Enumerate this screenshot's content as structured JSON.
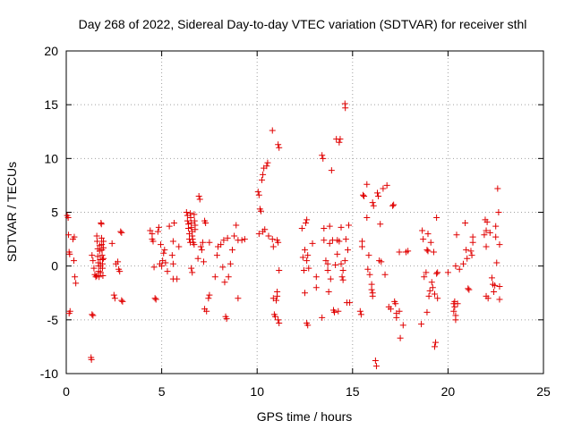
{
  "chart_data": {
    "type": "scatter",
    "title": "Day 268 of 2022, Sidereal Day-to-day VTEC variation (SDTVAR) for receiver sthl",
    "xlabel": "GPS time / hours",
    "ylabel": "SDTVAR / TECUs",
    "xlim": [
      0,
      25
    ],
    "ylim": [
      -10,
      20
    ],
    "xticks": [
      0,
      5,
      10,
      15,
      20,
      25
    ],
    "yticks": [
      -10,
      -5,
      0,
      5,
      10,
      15,
      20
    ],
    "grid": true,
    "marker": "+",
    "color": "#e00000",
    "series": [
      {
        "name": "SDTVAR",
        "points": [
          [
            0.05,
            4.7
          ],
          [
            0.1,
            4.5
          ],
          [
            0.12,
            2.9
          ],
          [
            0.15,
            1.3
          ],
          [
            0.18,
            1.1
          ],
          [
            0.2,
            -4.2
          ],
          [
            0.15,
            -4.4
          ],
          [
            0.35,
            2.5
          ],
          [
            0.4,
            0.5
          ],
          [
            0.42,
            2.7
          ],
          [
            0.45,
            -1.0
          ],
          [
            0.5,
            -1.6
          ],
          [
            1.3,
            -8.5
          ],
          [
            1.32,
            -8.7
          ],
          [
            1.35,
            -4.5
          ],
          [
            1.4,
            -4.6
          ],
          [
            1.35,
            1.0
          ],
          [
            1.4,
            0.5
          ],
          [
            1.45,
            -0.2
          ],
          [
            1.5,
            -0.8
          ],
          [
            1.55,
            -1.0
          ],
          [
            1.6,
            2.8
          ],
          [
            1.62,
            2.3
          ],
          [
            1.65,
            1.6
          ],
          [
            1.65,
            0.9
          ],
          [
            1.68,
            0.3
          ],
          [
            1.7,
            0.0
          ],
          [
            1.7,
            -0.5
          ],
          [
            1.72,
            -1.0
          ],
          [
            1.75,
            1.9
          ],
          [
            1.75,
            1.4
          ],
          [
            1.78,
            0.6
          ],
          [
            1.8,
            0.0
          ],
          [
            1.8,
            -0.6
          ],
          [
            1.82,
            4.0
          ],
          [
            1.84,
            3.9
          ],
          [
            1.85,
            2.6
          ],
          [
            1.86,
            2.0
          ],
          [
            1.87,
            1.5
          ],
          [
            1.88,
            1.0
          ],
          [
            1.9,
            0.6
          ],
          [
            1.9,
            0.2
          ],
          [
            1.9,
            -0.2
          ],
          [
            1.92,
            -0.9
          ],
          [
            1.95,
            2.3
          ],
          [
            1.95,
            1.7
          ],
          [
            1.95,
            0.7
          ],
          [
            1.6,
            -0.9
          ],
          [
            2.4,
            2.1
          ],
          [
            2.5,
            -2.7
          ],
          [
            2.55,
            -3.0
          ],
          [
            2.6,
            0.2
          ],
          [
            2.7,
            0.4
          ],
          [
            2.75,
            -0.3
          ],
          [
            2.8,
            -0.5
          ],
          [
            2.85,
            3.2
          ],
          [
            2.9,
            3.1
          ],
          [
            2.9,
            -3.2
          ],
          [
            2.95,
            -3.3
          ],
          [
            4.4,
            3.3
          ],
          [
            4.5,
            3.0
          ],
          [
            4.5,
            2.5
          ],
          [
            4.55,
            2.3
          ],
          [
            4.6,
            -0.1
          ],
          [
            4.65,
            -3.0
          ],
          [
            4.7,
            -3.1
          ],
          [
            4.8,
            3.2
          ],
          [
            4.85,
            3.6
          ],
          [
            4.9,
            0.2
          ],
          [
            4.95,
            2.0
          ],
          [
            5.0,
            0.0
          ],
          [
            5.05,
            0.5
          ],
          [
            5.1,
            1.2
          ],
          [
            5.15,
            1.5
          ],
          [
            5.2,
            0.3
          ],
          [
            5.3,
            -0.5
          ],
          [
            5.4,
            3.7
          ],
          [
            5.55,
            1.0
          ],
          [
            5.6,
            2.3
          ],
          [
            5.6,
            0.2
          ],
          [
            5.6,
            -1.2
          ],
          [
            5.65,
            4.0
          ],
          [
            5.8,
            -1.2
          ],
          [
            5.9,
            1.8
          ],
          [
            6.3,
            5.0
          ],
          [
            6.35,
            4.7
          ],
          [
            6.35,
            4.2
          ],
          [
            6.4,
            3.9
          ],
          [
            6.4,
            3.5
          ],
          [
            6.45,
            3.0
          ],
          [
            6.45,
            2.5
          ],
          [
            6.5,
            2.2
          ],
          [
            6.5,
            4.9
          ],
          [
            6.52,
            4.5
          ],
          [
            6.55,
            4.0
          ],
          [
            6.55,
            3.6
          ],
          [
            6.6,
            3.2
          ],
          [
            6.6,
            2.8
          ],
          [
            6.62,
            2.5
          ],
          [
            6.65,
            2.2
          ],
          [
            6.7,
            2.0
          ],
          [
            6.7,
            4.8
          ],
          [
            6.72,
            4.2
          ],
          [
            6.75,
            3.8
          ],
          [
            6.75,
            3.4
          ],
          [
            6.55,
            -0.2
          ],
          [
            6.6,
            -0.6
          ],
          [
            6.9,
            0.7
          ],
          [
            6.95,
            6.5
          ],
          [
            7.0,
            6.2
          ],
          [
            7.05,
            1.8
          ],
          [
            7.1,
            1.5
          ],
          [
            7.15,
            2.2
          ],
          [
            7.2,
            0.4
          ],
          [
            7.25,
            4.2
          ],
          [
            7.3,
            4.0
          ],
          [
            7.25,
            -4.0
          ],
          [
            7.35,
            -4.2
          ],
          [
            7.5,
            2.2
          ],
          [
            7.45,
            -3.0
          ],
          [
            7.5,
            -2.7
          ],
          [
            7.8,
            -1.0
          ],
          [
            7.9,
            1.0
          ],
          [
            7.95,
            1.8
          ],
          [
            8.1,
            2.0
          ],
          [
            8.2,
            -0.1
          ],
          [
            8.25,
            2.4
          ],
          [
            8.3,
            -1.5
          ],
          [
            8.35,
            -4.7
          ],
          [
            8.4,
            -4.9
          ],
          [
            8.45,
            2.6
          ],
          [
            8.5,
            -1.0
          ],
          [
            8.6,
            0.2
          ],
          [
            8.7,
            1.5
          ],
          [
            8.8,
            2.8
          ],
          [
            8.9,
            3.8
          ],
          [
            9.0,
            -3.0
          ],
          [
            9.0,
            2.4
          ],
          [
            9.2,
            2.4
          ],
          [
            9.35,
            2.5
          ],
          [
            10.05,
            6.9
          ],
          [
            10.1,
            6.6
          ],
          [
            10.15,
            5.3
          ],
          [
            10.1,
            3.0
          ],
          [
            10.2,
            5.1
          ],
          [
            10.25,
            8.0
          ],
          [
            10.3,
            3.2
          ],
          [
            10.3,
            8.5
          ],
          [
            10.35,
            9.1
          ],
          [
            10.4,
            3.4
          ],
          [
            10.5,
            9.3
          ],
          [
            10.55,
            9.6
          ],
          [
            10.6,
            2.8
          ],
          [
            10.8,
            12.6
          ],
          [
            10.85,
            1.8
          ],
          [
            10.8,
            2.5
          ],
          [
            10.85,
            -3.0
          ],
          [
            10.9,
            -4.5
          ],
          [
            10.95,
            -4.7
          ],
          [
            11.0,
            -3.2
          ],
          [
            11.05,
            -2.4
          ],
          [
            11.05,
            -2.8
          ],
          [
            11.1,
            -5.0
          ],
          [
            11.15,
            -5.3
          ],
          [
            11.1,
            11.3
          ],
          [
            11.15,
            11.0
          ],
          [
            11.05,
            2.4
          ],
          [
            11.1,
            2.2
          ],
          [
            11.15,
            -0.4
          ],
          [
            12.35,
            3.5
          ],
          [
            12.4,
            0.8
          ],
          [
            12.45,
            -0.4
          ],
          [
            12.5,
            1.5
          ],
          [
            12.55,
            4.0
          ],
          [
            12.6,
            4.3
          ],
          [
            12.6,
            0.5
          ],
          [
            12.65,
            1.0
          ],
          [
            12.7,
            -0.2
          ],
          [
            12.5,
            -2.5
          ],
          [
            12.6,
            -5.3
          ],
          [
            12.65,
            -5.5
          ],
          [
            12.9,
            2.1
          ],
          [
            13.1,
            -1.0
          ],
          [
            13.1,
            -2.0
          ],
          [
            13.4,
            10.3
          ],
          [
            13.45,
            10.0
          ],
          [
            13.4,
            -4.8
          ],
          [
            13.5,
            2.4
          ],
          [
            13.5,
            3.5
          ],
          [
            13.6,
            0.5
          ],
          [
            13.7,
            -0.4
          ],
          [
            13.7,
            0.2
          ],
          [
            13.75,
            -2.4
          ],
          [
            13.8,
            3.7
          ],
          [
            13.8,
            2.1
          ],
          [
            13.85,
            -1.2
          ],
          [
            13.9,
            8.9
          ],
          [
            13.95,
            2.4
          ],
          [
            14.0,
            -4.1
          ],
          [
            14.05,
            -4.3
          ],
          [
            14.1,
            0.1
          ],
          [
            14.15,
            11.8
          ],
          [
            14.2,
            2.4
          ],
          [
            14.2,
            1.1
          ],
          [
            14.25,
            -4.2
          ],
          [
            14.3,
            11.5
          ],
          [
            14.35,
            11.8
          ],
          [
            14.3,
            2.3
          ],
          [
            14.4,
            3.6
          ],
          [
            14.45,
            -1.0
          ],
          [
            14.5,
            -1.3
          ],
          [
            14.4,
            0.2
          ],
          [
            14.5,
            -0.4
          ],
          [
            14.6,
            15.1
          ],
          [
            14.62,
            14.7
          ],
          [
            14.6,
            0.5
          ],
          [
            14.65,
            2.5
          ],
          [
            14.7,
            -3.4
          ],
          [
            14.75,
            1.5
          ],
          [
            14.8,
            3.8
          ],
          [
            14.85,
            -3.4
          ],
          [
            15.4,
            -4.2
          ],
          [
            15.45,
            -4.5
          ],
          [
            15.5,
            2.3
          ],
          [
            15.5,
            1.8
          ],
          [
            15.55,
            6.6
          ],
          [
            15.6,
            6.5
          ],
          [
            15.75,
            7.6
          ],
          [
            15.75,
            4.5
          ],
          [
            15.8,
            -0.3
          ],
          [
            15.85,
            1.0
          ],
          [
            15.9,
            -0.8
          ],
          [
            16.0,
            -1.7
          ],
          [
            16.0,
            -2.2
          ],
          [
            16.05,
            -2.5
          ],
          [
            16.05,
            -2.8
          ],
          [
            16.05,
            5.9
          ],
          [
            16.1,
            5.6
          ],
          [
            16.2,
            -8.8
          ],
          [
            16.25,
            -9.3
          ],
          [
            16.3,
            6.8
          ],
          [
            16.35,
            6.5
          ],
          [
            16.4,
            0.5
          ],
          [
            16.45,
            3.9
          ],
          [
            16.5,
            0.4
          ],
          [
            16.6,
            7.2
          ],
          [
            16.7,
            -0.8
          ],
          [
            16.8,
            7.5
          ],
          [
            16.9,
            -3.8
          ],
          [
            17.0,
            -4.0
          ],
          [
            17.1,
            5.6
          ],
          [
            17.15,
            5.7
          ],
          [
            17.2,
            -3.3
          ],
          [
            17.25,
            -3.5
          ],
          [
            17.3,
            -4.4
          ],
          [
            17.3,
            -4.8
          ],
          [
            17.45,
            -4.2
          ],
          [
            17.5,
            -6.7
          ],
          [
            17.45,
            1.3
          ],
          [
            17.65,
            -5.5
          ],
          [
            17.8,
            1.3
          ],
          [
            17.9,
            1.4
          ],
          [
            18.6,
            -5.4
          ],
          [
            18.65,
            3.3
          ],
          [
            18.7,
            2.5
          ],
          [
            18.75,
            -1.0
          ],
          [
            18.85,
            -0.6
          ],
          [
            18.9,
            -4.3
          ],
          [
            18.9,
            1.5
          ],
          [
            18.95,
            3.0
          ],
          [
            18.95,
            1.4
          ],
          [
            19.0,
            -2.8
          ],
          [
            19.05,
            -2.3
          ],
          [
            19.1,
            2.2
          ],
          [
            19.15,
            -1.5
          ],
          [
            19.2,
            -2.0
          ],
          [
            19.25,
            1.3
          ],
          [
            19.3,
            -2.6
          ],
          [
            19.3,
            -7.5
          ],
          [
            19.35,
            -7.1
          ],
          [
            19.4,
            -0.7
          ],
          [
            19.4,
            4.5
          ],
          [
            19.45,
            -0.6
          ],
          [
            19.45,
            -3.0
          ],
          [
            20.0,
            -0.6
          ],
          [
            20.3,
            -3.5
          ],
          [
            20.35,
            -3.8
          ],
          [
            20.3,
            -4.2
          ],
          [
            20.4,
            -4.6
          ],
          [
            20.4,
            -5.0
          ],
          [
            20.35,
            -3.3
          ],
          [
            20.4,
            0.0
          ],
          [
            20.45,
            2.9
          ],
          [
            20.5,
            -3.5
          ],
          [
            20.6,
            -0.3
          ],
          [
            20.8,
            0.2
          ],
          [
            20.9,
            4.0
          ],
          [
            20.95,
            1.5
          ],
          [
            21.0,
            0.7
          ],
          [
            21.05,
            -2.1
          ],
          [
            21.1,
            -2.2
          ],
          [
            21.2,
            1.4
          ],
          [
            21.25,
            1.0
          ],
          [
            21.3,
            2.2
          ],
          [
            21.3,
            2.7
          ],
          [
            21.9,
            2.9
          ],
          [
            21.95,
            4.3
          ],
          [
            22.0,
            3.3
          ],
          [
            22.05,
            4.1
          ],
          [
            22.0,
            1.8
          ],
          [
            22.0,
            -2.8
          ],
          [
            22.1,
            -3.0
          ],
          [
            22.2,
            3.1
          ],
          [
            22.3,
            -1.1
          ],
          [
            22.35,
            -1.7
          ],
          [
            22.4,
            -2.4
          ],
          [
            22.45,
            -1.8
          ],
          [
            22.5,
            3.7
          ],
          [
            22.5,
            2.7
          ],
          [
            22.55,
            0.3
          ],
          [
            22.6,
            7.2
          ],
          [
            22.65,
            5.0
          ],
          [
            22.7,
            2.0
          ],
          [
            22.7,
            -1.9
          ],
          [
            22.7,
            -3.1
          ]
        ]
      }
    ]
  }
}
